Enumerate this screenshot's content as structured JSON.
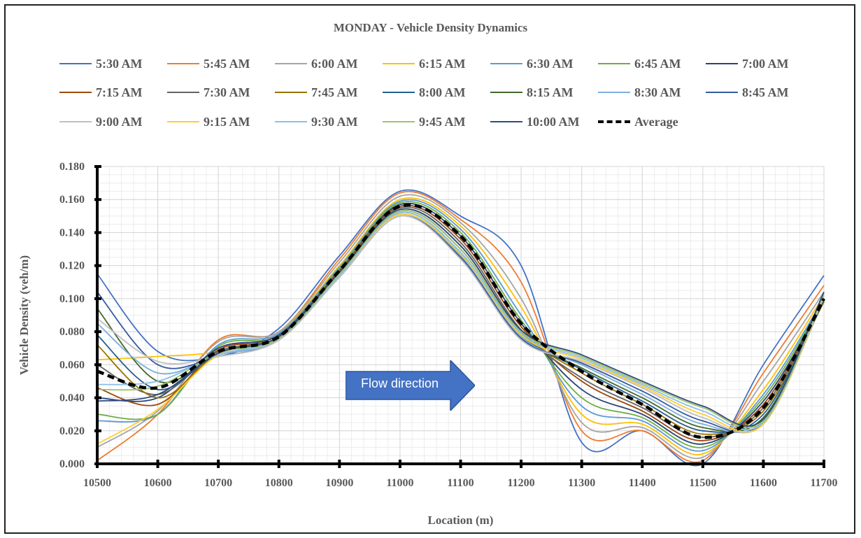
{
  "chart_data": {
    "type": "line",
    "title": "MONDAY - Vehicle Density Dynamics",
    "xlabel": "Location (m)",
    "ylabel": "Vehicle Density (veh/m)",
    "xlim": [
      10500,
      11700
    ],
    "ylim": [
      0,
      0.18
    ],
    "x_ticks": [
      "10500",
      "10600",
      "10700",
      "10800",
      "10900",
      "11000",
      "11100",
      "11200",
      "11300",
      "11400",
      "11500",
      "11600",
      "11700"
    ],
    "y_ticks": [
      "0.000",
      "0.020",
      "0.040",
      "0.060",
      "0.080",
      "0.100",
      "0.120",
      "0.140",
      "0.160",
      "0.180"
    ],
    "grid": true,
    "legend_position": "top",
    "x": [
      10500,
      10600,
      10700,
      10800,
      10900,
      11000,
      11100,
      11200,
      11300,
      11400,
      11500,
      11600,
      11700
    ],
    "series": [
      {
        "name": "5:30 AM",
        "color": "#4472c4",
        "values": [
          0.115,
          0.068,
          0.065,
          0.082,
          0.126,
          0.165,
          0.15,
          0.12,
          0.013,
          0.02,
          0.0,
          0.06,
          0.114
        ]
      },
      {
        "name": "5:45 AM",
        "color": "#ed7d31",
        "values": [
          0.002,
          0.03,
          0.075,
          0.08,
          0.124,
          0.164,
          0.148,
          0.11,
          0.02,
          0.02,
          0.002,
          0.055,
          0.108
        ]
      },
      {
        "name": "6:00 AM",
        "color": "#a5a5a5",
        "values": [
          0.01,
          0.032,
          0.074,
          0.08,
          0.122,
          0.162,
          0.146,
          0.1,
          0.025,
          0.022,
          0.004,
          0.05,
          0.104
        ]
      },
      {
        "name": "6:15 AM",
        "color": "#ffc000",
        "values": [
          0.063,
          0.065,
          0.068,
          0.079,
          0.12,
          0.16,
          0.144,
          0.095,
          0.03,
          0.024,
          0.006,
          0.045,
          0.102
        ]
      },
      {
        "name": "6:30 AM",
        "color": "#5b9bd5",
        "values": [
          0.026,
          0.03,
          0.072,
          0.079,
          0.119,
          0.159,
          0.142,
          0.09,
          0.035,
          0.026,
          0.008,
          0.042,
          0.1
        ]
      },
      {
        "name": "6:45 AM",
        "color": "#70ad47",
        "values": [
          0.03,
          0.03,
          0.071,
          0.078,
          0.118,
          0.158,
          0.14,
          0.087,
          0.04,
          0.028,
          0.01,
          0.04,
          0.099
        ]
      },
      {
        "name": "7:00 AM",
        "color": "#264478",
        "values": [
          0.04,
          0.04,
          0.07,
          0.078,
          0.117,
          0.157,
          0.138,
          0.085,
          0.045,
          0.03,
          0.012,
          0.038,
          0.098
        ]
      },
      {
        "name": "7:15 AM",
        "color": "#9e480e",
        "values": [
          0.046,
          0.036,
          0.069,
          0.077,
          0.117,
          0.156,
          0.136,
          0.083,
          0.05,
          0.032,
          0.014,
          0.036,
          0.098
        ]
      },
      {
        "name": "7:30 AM",
        "color": "#636363",
        "values": [
          0.06,
          0.042,
          0.068,
          0.077,
          0.116,
          0.155,
          0.134,
          0.081,
          0.052,
          0.034,
          0.016,
          0.034,
          0.098
        ]
      },
      {
        "name": "7:45 AM",
        "color": "#997300",
        "values": [
          0.072,
          0.04,
          0.067,
          0.076,
          0.115,
          0.154,
          0.132,
          0.08,
          0.055,
          0.036,
          0.018,
          0.032,
          0.098
        ]
      },
      {
        "name": "8:00 AM",
        "color": "#255e91",
        "values": [
          0.078,
          0.045,
          0.067,
          0.076,
          0.115,
          0.153,
          0.13,
          0.079,
          0.057,
          0.038,
          0.02,
          0.03,
          0.099
        ]
      },
      {
        "name": "8:15 AM",
        "color": "#43682b",
        "values": [
          0.094,
          0.05,
          0.066,
          0.076,
          0.114,
          0.152,
          0.128,
          0.078,
          0.058,
          0.04,
          0.022,
          0.028,
          0.099
        ]
      },
      {
        "name": "8:30 AM",
        "color": "#7cafdd",
        "values": [
          0.085,
          0.055,
          0.066,
          0.075,
          0.114,
          0.151,
          0.126,
          0.077,
          0.06,
          0.042,
          0.024,
          0.026,
          0.1
        ]
      },
      {
        "name": "8:45 AM",
        "color": "#335aa1",
        "values": [
          0.104,
          0.06,
          0.065,
          0.075,
          0.113,
          0.15,
          0.125,
          0.076,
          0.061,
          0.044,
          0.026,
          0.025,
          0.1
        ]
      },
      {
        "name": "9:00 AM",
        "color": "#bfbfbf",
        "values": [
          0.088,
          0.062,
          0.065,
          0.075,
          0.113,
          0.15,
          0.124,
          0.075,
          0.062,
          0.046,
          0.028,
          0.024,
          0.101
        ]
      },
      {
        "name": "9:15 AM",
        "color": "#ffcd33",
        "values": [
          0.012,
          0.033,
          0.066,
          0.076,
          0.114,
          0.151,
          0.127,
          0.078,
          0.063,
          0.047,
          0.03,
          0.024,
          0.101
        ]
      },
      {
        "name": "9:30 AM",
        "color": "#8cc0e8",
        "values": [
          0.048,
          0.05,
          0.066,
          0.076,
          0.114,
          0.152,
          0.128,
          0.079,
          0.064,
          0.048,
          0.032,
          0.025,
          0.102
        ]
      },
      {
        "name": "9:45 AM",
        "color": "#9dc36b",
        "values": [
          0.045,
          0.047,
          0.067,
          0.076,
          0.115,
          0.153,
          0.13,
          0.08,
          0.065,
          0.049,
          0.034,
          0.026,
          0.103
        ]
      },
      {
        "name": "10:00 AM",
        "color": "#2f4b7c",
        "values": [
          0.038,
          0.042,
          0.067,
          0.077,
          0.116,
          0.154,
          0.132,
          0.081,
          0.066,
          0.05,
          0.035,
          0.027,
          0.104
        ]
      },
      {
        "name": "Average",
        "color": "#000000",
        "dashed": true,
        "values": [
          0.056,
          0.046,
          0.068,
          0.077,
          0.117,
          0.156,
          0.138,
          0.085,
          0.056,
          0.036,
          0.016,
          0.034,
          0.1
        ]
      }
    ]
  },
  "annotation": {
    "flow_label": "Flow direction",
    "color": "#4472c4"
  }
}
